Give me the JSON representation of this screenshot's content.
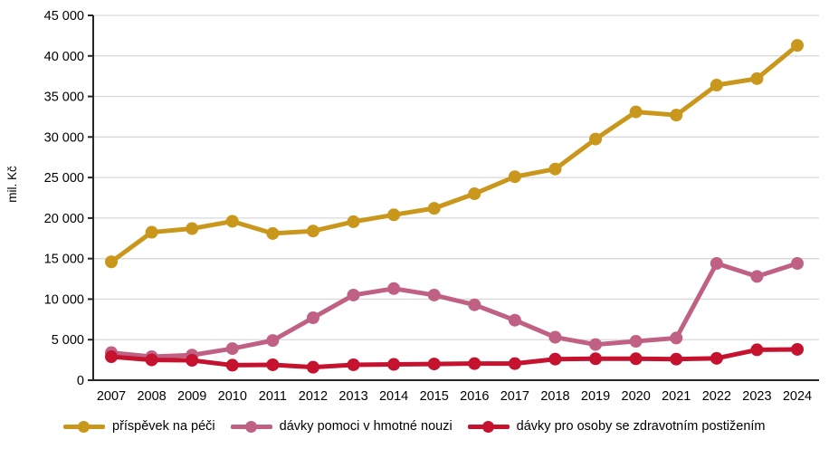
{
  "chart_data": {
    "type": "line",
    "title": "",
    "xlabel": "",
    "ylabel": "mil. Kč",
    "ylim": [
      0,
      45000
    ],
    "ytick_step": 5000,
    "grid": true,
    "legend_position": "bottom",
    "x": [
      2007,
      2008,
      2009,
      2010,
      2011,
      2012,
      2013,
      2014,
      2015,
      2016,
      2017,
      2018,
      2019,
      2020,
      2021,
      2022,
      2023,
      2024
    ],
    "series": [
      {
        "name": "příspěvek na péči",
        "color": "#C9971C",
        "values": [
          14600,
          18250,
          18700,
          19600,
          18100,
          18400,
          19550,
          20400,
          21200,
          23000,
          25100,
          26050,
          29750,
          33100,
          32700,
          36400,
          37200,
          41300
        ]
      },
      {
        "name": "dávky pomoci v hmotné nouzi",
        "color": "#C06183",
        "values": [
          3400,
          2900,
          3100,
          3900,
          4900,
          7700,
          10500,
          11300,
          10500,
          9300,
          7400,
          5300,
          4400,
          4800,
          5200,
          14400,
          12800,
          14400
        ]
      },
      {
        "name": "dávky pro osoby se zdravotním postižením",
        "color": "#C4122F",
        "values": [
          2900,
          2500,
          2450,
          1850,
          1900,
          1600,
          1900,
          1950,
          2000,
          2050,
          2050,
          2600,
          2650,
          2650,
          2600,
          2700,
          3750,
          3800
        ]
      }
    ],
    "colors": {
      "gridline": "#D9D9D9",
      "axis": "#262626",
      "tick_text": "#000000"
    }
  }
}
